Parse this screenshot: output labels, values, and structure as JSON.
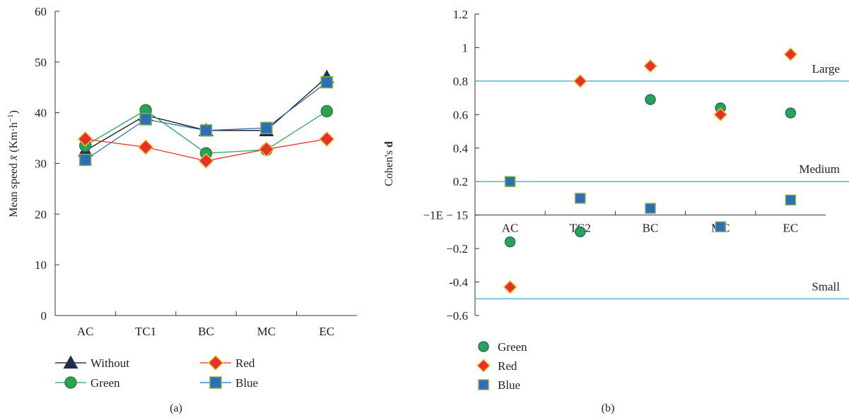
{
  "chart_data": [
    {
      "panel_label": "(a)",
      "type": "line",
      "ylabel_prefix": "Mean speed ",
      "ylabel_symbol": "x̄",
      "ylabel_unit": " (Km·h",
      "ylabel_exp": "−1",
      "ylabel_suffix": ")",
      "categories": [
        "AC",
        "TC1",
        "BC",
        "MC",
        "EC"
      ],
      "ylim": [
        0,
        60
      ],
      "yticks": [
        "0",
        "10",
        "20",
        "30",
        "40",
        "50",
        "60"
      ],
      "ytick_values": [
        0,
        10,
        20,
        30,
        40,
        50,
        60
      ],
      "series": [
        {
          "name": "Without",
          "marker": "triangle",
          "color": "#1f2d4a",
          "line_color": "#111111",
          "values": [
            32.5,
            39.5,
            36.5,
            36.5,
            47.0
          ]
        },
        {
          "name": "Green",
          "marker": "circle",
          "color": "#2aa35a",
          "line_color": "#2aa35a",
          "values": [
            33.5,
            40.5,
            32.0,
            32.7,
            40.3
          ]
        },
        {
          "name": "Red",
          "marker": "diamond",
          "color": "#e8302a",
          "line_color": "#e8302a",
          "values": [
            34.8,
            33.2,
            30.5,
            32.8,
            34.8
          ]
        },
        {
          "name": "Blue",
          "marker": "square",
          "color": "#2f6db5",
          "line_color": "#2f6db5",
          "values": [
            30.7,
            38.7,
            36.5,
            37.0,
            46.0
          ]
        }
      ],
      "legend_placement": "bottom",
      "grid": false
    },
    {
      "panel_label": "(b)",
      "type": "scatter",
      "ylabel_main": "Cohen's ",
      "ylabel_bold": "d",
      "categories": [
        "AC",
        "TC2",
        "BC",
        "MC",
        "EC"
      ],
      "yticks": [
        "1.2",
        "1",
        "0.8",
        "0.6",
        "0.4",
        "0.2",
        "−1E − 15",
        "−0.2",
        "-0.4",
        "−0.6"
      ],
      "ytick_values": [
        1.2,
        1.0,
        0.8,
        0.6,
        0.4,
        0.2,
        0.0,
        -0.2,
        -0.4,
        -0.6
      ],
      "ylim": [
        -0.6,
        1.2
      ],
      "reference_lines": [
        {
          "label": "Large",
          "value": 0.8
        },
        {
          "label": "Medium",
          "value": 0.2
        },
        {
          "label": "Small",
          "value": -0.5
        }
      ],
      "reference_line_color": "#3aa6d8",
      "series": [
        {
          "name": "Green",
          "marker": "circle",
          "color": "#2aa35a",
          "values": [
            -0.16,
            -0.1,
            0.69,
            0.64,
            0.61
          ]
        },
        {
          "name": "Red",
          "marker": "diamond",
          "color": "#e8302a",
          "values": [
            -0.43,
            0.8,
            0.89,
            0.6,
            0.96
          ]
        },
        {
          "name": "Blue",
          "marker": "square",
          "color": "#2f6db5",
          "values": [
            0.2,
            0.1,
            0.04,
            -0.07,
            0.09
          ]
        }
      ],
      "legend_placement": "bottom",
      "grid": false
    }
  ]
}
